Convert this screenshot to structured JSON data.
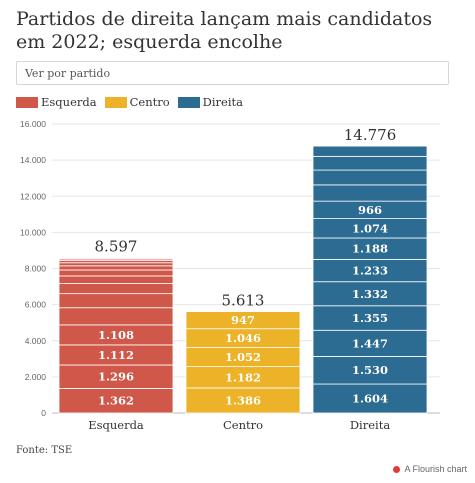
{
  "title": "Partidos de direita lançam mais candidatos em 2022; esquerda encolhe",
  "filter": {
    "placeholder": "Ver por partido"
  },
  "source": "Fonte: TSE",
  "credit": "A Flourish chart",
  "colors": {
    "Esquerda": "#d0584a",
    "Centro": "#ecb228",
    "Direita": "#2c6b92"
  },
  "chart_data": {
    "type": "bar",
    "stacked": true,
    "categories": [
      "Esquerda",
      "Centro",
      "Direita"
    ],
    "totals": [
      8597,
      5613,
      14776
    ],
    "total_labels": [
      "8.597",
      "5.613",
      "14.776"
    ],
    "ylim": [
      0,
      16000
    ],
    "yticks": [
      0,
      2000,
      4000,
      6000,
      8000,
      10000,
      12000,
      14000,
      16000
    ],
    "ytick_labels": [
      "0",
      "2.000",
      "4.000",
      "6.000",
      "8.000",
      "10.000",
      "12.000",
      "14.000",
      "16.000"
    ],
    "legend": [
      "Esquerda",
      "Centro",
      "Direita"
    ],
    "legend_position": "top-left",
    "grid": true,
    "stacks": [
      {
        "category": "Esquerda",
        "segments": [
          {
            "value": 1362,
            "label": "1.362"
          },
          {
            "value": 1296,
            "label": "1.296"
          },
          {
            "value": 1112,
            "label": "1.112"
          },
          {
            "value": 1108,
            "label": "1.108"
          },
          {
            "value": 950
          },
          {
            "value": 780
          },
          {
            "value": 560
          },
          {
            "value": 420
          },
          {
            "value": 330
          },
          {
            "value": 230
          },
          {
            "value": 170
          },
          {
            "value": 120
          },
          {
            "value": 80
          },
          {
            "value": 50
          },
          {
            "value": 29
          }
        ]
      },
      {
        "category": "Centro",
        "segments": [
          {
            "value": 1386,
            "label": "1.386"
          },
          {
            "value": 1182,
            "label": "1.182"
          },
          {
            "value": 1052,
            "label": "1.052"
          },
          {
            "value": 1046,
            "label": "1.046"
          },
          {
            "value": 947,
            "label": "947"
          }
        ]
      },
      {
        "category": "Direita",
        "segments": [
          {
            "value": 1604,
            "label": "1.604"
          },
          {
            "value": 1530,
            "label": "1.530"
          },
          {
            "value": 1447,
            "label": "1.447"
          },
          {
            "value": 1355,
            "label": "1.355"
          },
          {
            "value": 1332,
            "label": "1.332"
          },
          {
            "value": 1233,
            "label": "1.233"
          },
          {
            "value": 1188,
            "label": "1.188"
          },
          {
            "value": 1074,
            "label": "1.074"
          },
          {
            "value": 966,
            "label": "966"
          },
          {
            "value": 900
          },
          {
            "value": 820
          },
          {
            "value": 760
          },
          {
            "value": 567
          }
        ]
      }
    ]
  }
}
